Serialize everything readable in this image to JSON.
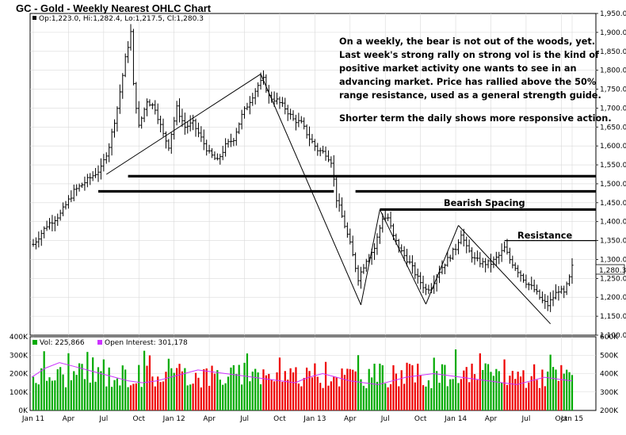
{
  "chart_title": "GC - Gold - Weekly Nearest OHLC Chart",
  "ohlc_legend": "Op:1,223.0, Hi:1,282.4, Lo:1,217.5, Cl:1,280.3",
  "last_price_tag": "1,280.3",
  "annotation_lines": [
    "On a weekly, the bear is not out of the woods, yet.",
    "Last week's strong rally on strong vol is the kind of",
    "positive market activity one wants to see in an",
    "advancing market.  Price has rallied above the 50%",
    "range resistance, used as a general strength guide.",
    "",
    "Shorter term the daily shows more responsive action."
  ],
  "bearish_spacing_label": "Bearish Spacing",
  "resistance_label": "Resistance",
  "vol_label": "Vol: 225,866",
  "oi_label": "Open Interest: 301,178",
  "colors": {
    "price_bar": "#000000",
    "vol_up": "#00aa00",
    "vol_down": "#ee0000",
    "oi_line": "#cc33ff",
    "grid": "#d9d9d9"
  },
  "chart_data": [
    {
      "type": "ohlc",
      "title": "GC - Gold - Weekly Nearest OHLC Chart",
      "x_tick_labels": [
        "Jan 11",
        "Apr",
        "Jul",
        "Oct",
        "Jan 12",
        "Apr",
        "Jul",
        "Oct",
        "Jan 13",
        "Apr",
        "Jul",
        "Oct",
        "Jan 14",
        "Apr",
        "Jul",
        "Oct",
        "Jan 15"
      ],
      "y_tick_labels": [
        "1,950.0",
        "1,900.0",
        "1,850.0",
        "1,800.0",
        "1,750.0",
        "1,700.0",
        "1,650.0",
        "1,600.0",
        "1,550.0",
        "1,500.0",
        "1,450.0",
        "1,400.0",
        "1,350.0",
        "1,300.0",
        "1,250.0",
        "1,200.0",
        "1,150.0",
        "1,100.0"
      ],
      "ylim": [
        1100,
        1950
      ],
      "price_path": [
        {
          "t": 0,
          "p": 1340
        },
        {
          "t": 5,
          "p": 1390
        },
        {
          "t": 10,
          "p": 1420
        },
        {
          "t": 15,
          "p": 1480
        },
        {
          "t": 20,
          "p": 1510
        },
        {
          "t": 25,
          "p": 1540
        },
        {
          "t": 28,
          "p": 1600
        },
        {
          "t": 31,
          "p": 1700
        },
        {
          "t": 34,
          "p": 1830
        },
        {
          "t": 36,
          "p": 1900
        },
        {
          "t": 37,
          "p": 1760
        },
        {
          "t": 39,
          "p": 1650
        },
        {
          "t": 42,
          "p": 1720
        },
        {
          "t": 45,
          "p": 1700
        },
        {
          "t": 48,
          "p": 1630
        },
        {
          "t": 50,
          "p": 1600
        },
        {
          "t": 53,
          "p": 1700
        },
        {
          "t": 56,
          "p": 1650
        },
        {
          "t": 59,
          "p": 1660
        },
        {
          "t": 62,
          "p": 1620
        },
        {
          "t": 65,
          "p": 1580
        },
        {
          "t": 68,
          "p": 1560
        },
        {
          "t": 71,
          "p": 1600
        },
        {
          "t": 74,
          "p": 1620
        },
        {
          "t": 77,
          "p": 1680
        },
        {
          "t": 80,
          "p": 1720
        },
        {
          "t": 83,
          "p": 1760
        },
        {
          "t": 85,
          "p": 1775
        },
        {
          "t": 87,
          "p": 1730
        },
        {
          "t": 90,
          "p": 1720
        },
        {
          "t": 93,
          "p": 1700
        },
        {
          "t": 96,
          "p": 1670
        },
        {
          "t": 99,
          "p": 1660
        },
        {
          "t": 102,
          "p": 1620
        },
        {
          "t": 105,
          "p": 1590
        },
        {
          "t": 108,
          "p": 1580
        },
        {
          "t": 110,
          "p": 1560
        },
        {
          "t": 112,
          "p": 1460
        },
        {
          "t": 115,
          "p": 1390
        },
        {
          "t": 117,
          "p": 1340
        },
        {
          "t": 120,
          "p": 1250
        },
        {
          "t": 123,
          "p": 1300
        },
        {
          "t": 126,
          "p": 1330
        },
        {
          "t": 129,
          "p": 1410
        },
        {
          "t": 131,
          "p": 1410
        },
        {
          "t": 133,
          "p": 1360
        },
        {
          "t": 136,
          "p": 1320
        },
        {
          "t": 139,
          "p": 1290
        },
        {
          "t": 142,
          "p": 1250
        },
        {
          "t": 145,
          "p": 1220
        },
        {
          "t": 147,
          "p": 1230
        },
        {
          "t": 150,
          "p": 1270
        },
        {
          "t": 153,
          "p": 1300
        },
        {
          "t": 156,
          "p": 1330
        },
        {
          "t": 158,
          "p": 1370
        },
        {
          "t": 160,
          "p": 1330
        },
        {
          "t": 163,
          "p": 1300
        },
        {
          "t": 166,
          "p": 1290
        },
        {
          "t": 169,
          "p": 1290
        },
        {
          "t": 172,
          "p": 1310
        },
        {
          "t": 174,
          "p": 1330
        },
        {
          "t": 176,
          "p": 1300
        },
        {
          "t": 179,
          "p": 1270
        },
        {
          "t": 182,
          "p": 1240
        },
        {
          "t": 185,
          "p": 1220
        },
        {
          "t": 188,
          "p": 1190
        },
        {
          "t": 190,
          "p": 1180
        },
        {
          "t": 192,
          "p": 1200
        },
        {
          "t": 194,
          "p": 1220
        },
        {
          "t": 196,
          "p": 1210
        },
        {
          "t": 198,
          "p": 1250
        },
        {
          "t": 199,
          "p": 1280
        }
      ],
      "overlays": {
        "support_upper": {
          "value": 1520
        },
        "support_lower": {
          "value": 1480
        },
        "bearish_spacing": {
          "value": 1432
        },
        "resistance": {
          "value": 1350
        },
        "swing_lines": [
          [
            {
              "t": 27,
              "p": 1525
            },
            {
              "t": 84,
              "p": 1790
            }
          ],
          [
            {
              "t": 84,
              "p": 1790
            },
            {
              "t": 121,
              "p": 1180
            }
          ],
          [
            {
              "t": 121,
              "p": 1180
            },
            {
              "t": 128,
              "p": 1432
            }
          ],
          [
            {
              "t": 128,
              "p": 1432
            },
            {
              "t": 145,
              "p": 1182
            }
          ],
          [
            {
              "t": 145,
              "p": 1182
            },
            {
              "t": 157,
              "p": 1390
            }
          ],
          [
            {
              "t": 157,
              "p": 1390
            },
            {
              "t": 191,
              "p": 1130
            }
          ]
        ]
      }
    },
    {
      "type": "bar",
      "title": "Vol: 225,866",
      "y_tick_labels_left": [
        "400K",
        "300K",
        "200K",
        "100K",
        "0K"
      ],
      "y_tick_labels_right": [
        "600K",
        "500K",
        "400K",
        "300K",
        "200K"
      ],
      "ylim_left": [
        0,
        400000
      ],
      "ylim_right": [
        200000,
        600000
      ],
      "oi_level": [
        380000,
        430000,
        460000,
        440000,
        420000,
        400000,
        380000,
        360000,
        350000,
        360000,
        380000,
        400000,
        420000,
        410000,
        400000,
        390000,
        380000,
        370000,
        360000,
        350000,
        380000,
        400000,
        380000,
        360000,
        350000,
        340000,
        360000,
        380000,
        390000,
        400000,
        390000,
        380000,
        370000,
        360000,
        350000,
        340000,
        360000,
        380000,
        370000,
        360000
      ]
    }
  ]
}
